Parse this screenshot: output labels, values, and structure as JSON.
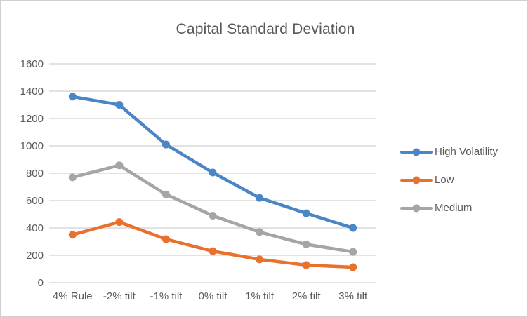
{
  "window": {
    "background": "#ffffff",
    "border_color": "#cfcfcf"
  },
  "chart_data": {
    "type": "line",
    "title": "Capital Standard Deviation",
    "categories": [
      "4% Rule",
      "-2% tilt",
      "-1% tilt",
      "0% tilt",
      "1% tilt",
      "2% tilt",
      "3% tilt"
    ],
    "series": [
      {
        "name": "High Volatility",
        "color": "#4A86C6",
        "values": [
          1360,
          1300,
          1010,
          805,
          620,
          507,
          400
        ]
      },
      {
        "name": "Low",
        "color": "#E8712D",
        "values": [
          350,
          443,
          318,
          230,
          170,
          128,
          113
        ]
      },
      {
        "name": "Medium",
        "color": "#A5A5A5",
        "values": [
          770,
          858,
          645,
          490,
          370,
          280,
          225
        ]
      }
    ],
    "xlabel": "",
    "ylabel": "",
    "ylim": [
      0,
      1600
    ],
    "ytick_step": 200,
    "ytick_labels": [
      "0",
      "200",
      "400",
      "600",
      "800",
      "1000",
      "1200",
      "1400",
      "1600"
    ],
    "grid": true,
    "gridline_color": "#D9D9D9",
    "axis_text_color": "#595959",
    "legend_position": "right",
    "legend_entries": [
      "High Volatility",
      "Low",
      "Medium"
    ],
    "marker_style": "circle",
    "line_width": 4.5,
    "marker_radius": 5.5
  }
}
